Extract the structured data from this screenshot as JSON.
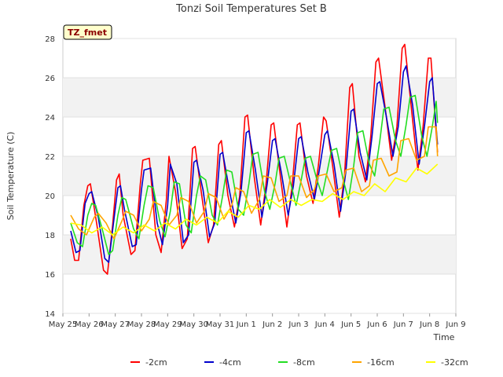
{
  "chart_data": {
    "type": "line",
    "title": "Tonzi Soil Temperatures Set B",
    "xlabel": "Time",
    "ylabel": "Soil Temperature (C)",
    "tag_label": "TZ_fmet",
    "ylim": [
      14,
      28
    ],
    "yticks": [
      14,
      16,
      18,
      20,
      22,
      24,
      26,
      28
    ],
    "xlim": [
      0,
      15
    ],
    "xtick_labels": [
      "May 25",
      "May 26",
      "May 27",
      "May 28",
      "May 29",
      "May 30",
      "May 31",
      "Jun 1",
      "Jun 2",
      "Jun 3",
      "Jun 4",
      "Jun 5",
      "Jun 6",
      "Jun 7",
      "Jun 8",
      "Jun 9"
    ],
    "grid": true,
    "legend_position": "bottom",
    "series": [
      {
        "name": "-2cm",
        "color": "#ff0000",
        "x": [
          0.3,
          0.45,
          0.6,
          0.8,
          0.95,
          1.05,
          1.3,
          1.55,
          1.7,
          1.9,
          2.05,
          2.15,
          2.3,
          2.6,
          2.75,
          2.95,
          3.05,
          3.3,
          3.55,
          3.75,
          3.95,
          4.05,
          4.3,
          4.55,
          4.75,
          4.95,
          5.05,
          5.3,
          5.55,
          5.75,
          5.95,
          6.05,
          6.3,
          6.55,
          6.75,
          6.95,
          7.05,
          7.3,
          7.55,
          7.75,
          7.95,
          8.05,
          8.3,
          8.55,
          8.75,
          8.95,
          9.05,
          9.3,
          9.55,
          9.75,
          9.95,
          10.05,
          10.3,
          10.55,
          10.75,
          10.95,
          11.05,
          11.3,
          11.55,
          11.75,
          11.95,
          12.05,
          12.3,
          12.55,
          12.75,
          12.95,
          13.05,
          13.3,
          13.55,
          13.75,
          13.95,
          14.05,
          14.3
        ],
        "y": [
          17.8,
          16.7,
          16.7,
          19.5,
          20.5,
          20.6,
          18.5,
          16.2,
          16.0,
          18.5,
          20.8,
          21.1,
          19.0,
          17.0,
          17.2,
          20.5,
          21.8,
          21.9,
          18.0,
          17.1,
          19.8,
          22.0,
          20.2,
          17.3,
          17.8,
          22.4,
          22.5,
          20.0,
          17.6,
          18.5,
          22.6,
          22.8,
          20.0,
          18.4,
          20.0,
          24.0,
          24.1,
          21.0,
          18.5,
          20.5,
          23.6,
          23.7,
          21.0,
          18.4,
          20.5,
          23.6,
          23.7,
          21.0,
          19.6,
          21.5,
          24.0,
          23.8,
          21.5,
          18.9,
          21.0,
          25.5,
          25.7,
          22.0,
          20.7,
          23.0,
          26.8,
          27.0,
          24.5,
          21.8,
          23.5,
          27.5,
          27.7,
          24.5,
          21.3,
          23.5,
          27.0,
          27.0,
          22.2
        ]
      },
      {
        "name": "-4cm",
        "color": "#0000cc",
        "x": [
          0.3,
          0.5,
          0.65,
          0.85,
          1.0,
          1.1,
          1.35,
          1.6,
          1.75,
          1.95,
          2.1,
          2.2,
          2.35,
          2.65,
          2.8,
          3.0,
          3.1,
          3.35,
          3.6,
          3.8,
          4.0,
          4.1,
          4.35,
          4.6,
          4.8,
          5.0,
          5.1,
          5.35,
          5.6,
          5.8,
          6.0,
          6.1,
          6.35,
          6.6,
          6.8,
          7.0,
          7.1,
          7.35,
          7.6,
          7.8,
          8.0,
          8.1,
          8.35,
          8.6,
          8.8,
          9.0,
          9.1,
          9.35,
          9.6,
          9.8,
          10.0,
          10.1,
          10.35,
          10.6,
          10.8,
          11.0,
          11.1,
          11.35,
          11.6,
          11.8,
          12.0,
          12.1,
          12.35,
          12.6,
          12.8,
          13.0,
          13.1,
          13.35,
          13.6,
          13.8,
          14.0,
          14.1,
          14.3
        ],
        "y": [
          18.2,
          17.1,
          17.2,
          19.6,
          20.1,
          20.2,
          18.9,
          16.8,
          16.6,
          18.8,
          20.4,
          20.5,
          19.3,
          17.4,
          17.5,
          20.3,
          21.3,
          21.4,
          18.6,
          17.5,
          19.5,
          21.6,
          20.6,
          17.6,
          18.0,
          21.7,
          21.8,
          20.3,
          17.9,
          18.6,
          22.1,
          22.2,
          20.3,
          18.6,
          20.2,
          23.2,
          23.3,
          21.3,
          18.9,
          20.6,
          22.8,
          22.9,
          21.1,
          19.0,
          20.5,
          22.9,
          23.0,
          21.2,
          19.8,
          21.4,
          23.1,
          23.3,
          21.6,
          19.2,
          21.2,
          24.3,
          24.4,
          22.2,
          20.8,
          23.0,
          25.7,
          25.8,
          24.0,
          22.0,
          23.5,
          26.3,
          26.6,
          24.6,
          21.6,
          23.5,
          25.8,
          26.0,
          22.6
        ]
      },
      {
        "name": "-8cm",
        "color": "#22dd22",
        "x": [
          0.3,
          0.55,
          0.75,
          0.95,
          1.1,
          1.25,
          1.5,
          1.75,
          1.9,
          2.1,
          2.25,
          2.4,
          2.7,
          2.9,
          3.1,
          3.25,
          3.45,
          3.7,
          3.9,
          4.1,
          4.25,
          4.45,
          4.7,
          4.9,
          5.1,
          5.25,
          5.45,
          5.7,
          5.9,
          6.1,
          6.25,
          6.45,
          6.7,
          6.9,
          7.1,
          7.25,
          7.45,
          7.7,
          7.9,
          8.1,
          8.25,
          8.45,
          8.7,
          8.9,
          9.1,
          9.25,
          9.45,
          9.7,
          9.9,
          10.1,
          10.25,
          10.45,
          10.7,
          10.9,
          11.1,
          11.25,
          11.45,
          11.7,
          11.9,
          12.1,
          12.25,
          12.45,
          12.7,
          12.9,
          13.1,
          13.25,
          13.45,
          13.7,
          13.9,
          14.1,
          14.25,
          14.3
        ],
        "y": [
          18.6,
          17.6,
          17.4,
          19.0,
          19.6,
          19.5,
          18.3,
          17.0,
          17.2,
          19.0,
          19.9,
          19.8,
          18.3,
          17.8,
          19.5,
          20.5,
          20.4,
          18.7,
          17.9,
          19.2,
          20.7,
          20.6,
          18.5,
          18.1,
          20.0,
          21.0,
          20.8,
          19.0,
          18.5,
          20.0,
          21.3,
          21.2,
          19.3,
          19.0,
          20.6,
          22.1,
          22.2,
          20.2,
          19.3,
          20.6,
          21.9,
          22.0,
          20.6,
          19.5,
          20.8,
          21.9,
          22.0,
          20.8,
          20.0,
          21.3,
          22.3,
          22.4,
          20.8,
          19.8,
          21.5,
          23.2,
          23.3,
          21.6,
          21.0,
          22.8,
          24.4,
          24.5,
          22.8,
          22.0,
          23.6,
          25.0,
          25.1,
          23.0,
          22.0,
          23.5,
          24.8,
          23.7
        ]
      },
      {
        "name": "-16cm",
        "color": "#ffa500",
        "x": [
          0.3,
          0.6,
          0.9,
          1.2,
          1.35,
          1.65,
          1.95,
          2.25,
          2.4,
          2.7,
          3.0,
          3.3,
          3.45,
          3.75,
          4.05,
          4.35,
          4.5,
          4.8,
          5.1,
          5.4,
          5.55,
          5.85,
          6.15,
          6.45,
          6.6,
          6.9,
          7.2,
          7.5,
          7.65,
          7.95,
          8.25,
          8.55,
          8.7,
          9.0,
          9.3,
          9.6,
          9.75,
          10.05,
          10.35,
          10.65,
          10.8,
          11.1,
          11.4,
          11.7,
          11.85,
          12.15,
          12.45,
          12.75,
          12.9,
          13.2,
          13.5,
          13.8,
          13.95,
          14.25,
          14.3
        ],
        "y": [
          19.0,
          18.3,
          18.0,
          18.9,
          19.1,
          18.6,
          17.8,
          18.7,
          19.2,
          19.0,
          18.2,
          18.8,
          19.7,
          19.5,
          18.5,
          19.0,
          19.9,
          19.7,
          18.6,
          19.2,
          20.1,
          19.9,
          18.8,
          19.5,
          20.4,
          20.2,
          19.1,
          19.8,
          21.0,
          20.9,
          19.7,
          20.0,
          21.0,
          21.0,
          19.9,
          20.3,
          21.0,
          21.1,
          20.2,
          20.4,
          21.3,
          21.4,
          20.2,
          20.5,
          21.8,
          21.9,
          21.0,
          21.2,
          22.8,
          22.9,
          21.8,
          22.0,
          23.5,
          23.5,
          22.0
        ]
      },
      {
        "name": "-32cm",
        "color": "#ffff00",
        "x": [
          0.3,
          0.7,
          1.1,
          1.5,
          1.9,
          2.3,
          2.7,
          3.1,
          3.5,
          3.9,
          4.3,
          4.7,
          5.1,
          5.5,
          5.9,
          6.3,
          6.7,
          7.1,
          7.5,
          7.9,
          8.3,
          8.7,
          9.1,
          9.5,
          9.9,
          10.3,
          10.7,
          11.1,
          11.5,
          11.9,
          12.3,
          12.7,
          13.1,
          13.5,
          13.9,
          14.3
        ],
        "y": [
          18.6,
          18.5,
          18.1,
          18.4,
          18.0,
          18.4,
          18.1,
          18.5,
          18.2,
          18.6,
          18.3,
          18.8,
          18.5,
          18.9,
          18.6,
          19.2,
          18.9,
          19.5,
          19.3,
          19.8,
          19.4,
          19.8,
          19.5,
          19.8,
          19.7,
          20.1,
          19.8,
          20.2,
          20.0,
          20.6,
          20.2,
          20.9,
          20.7,
          21.4,
          21.1,
          21.6
        ]
      }
    ]
  }
}
